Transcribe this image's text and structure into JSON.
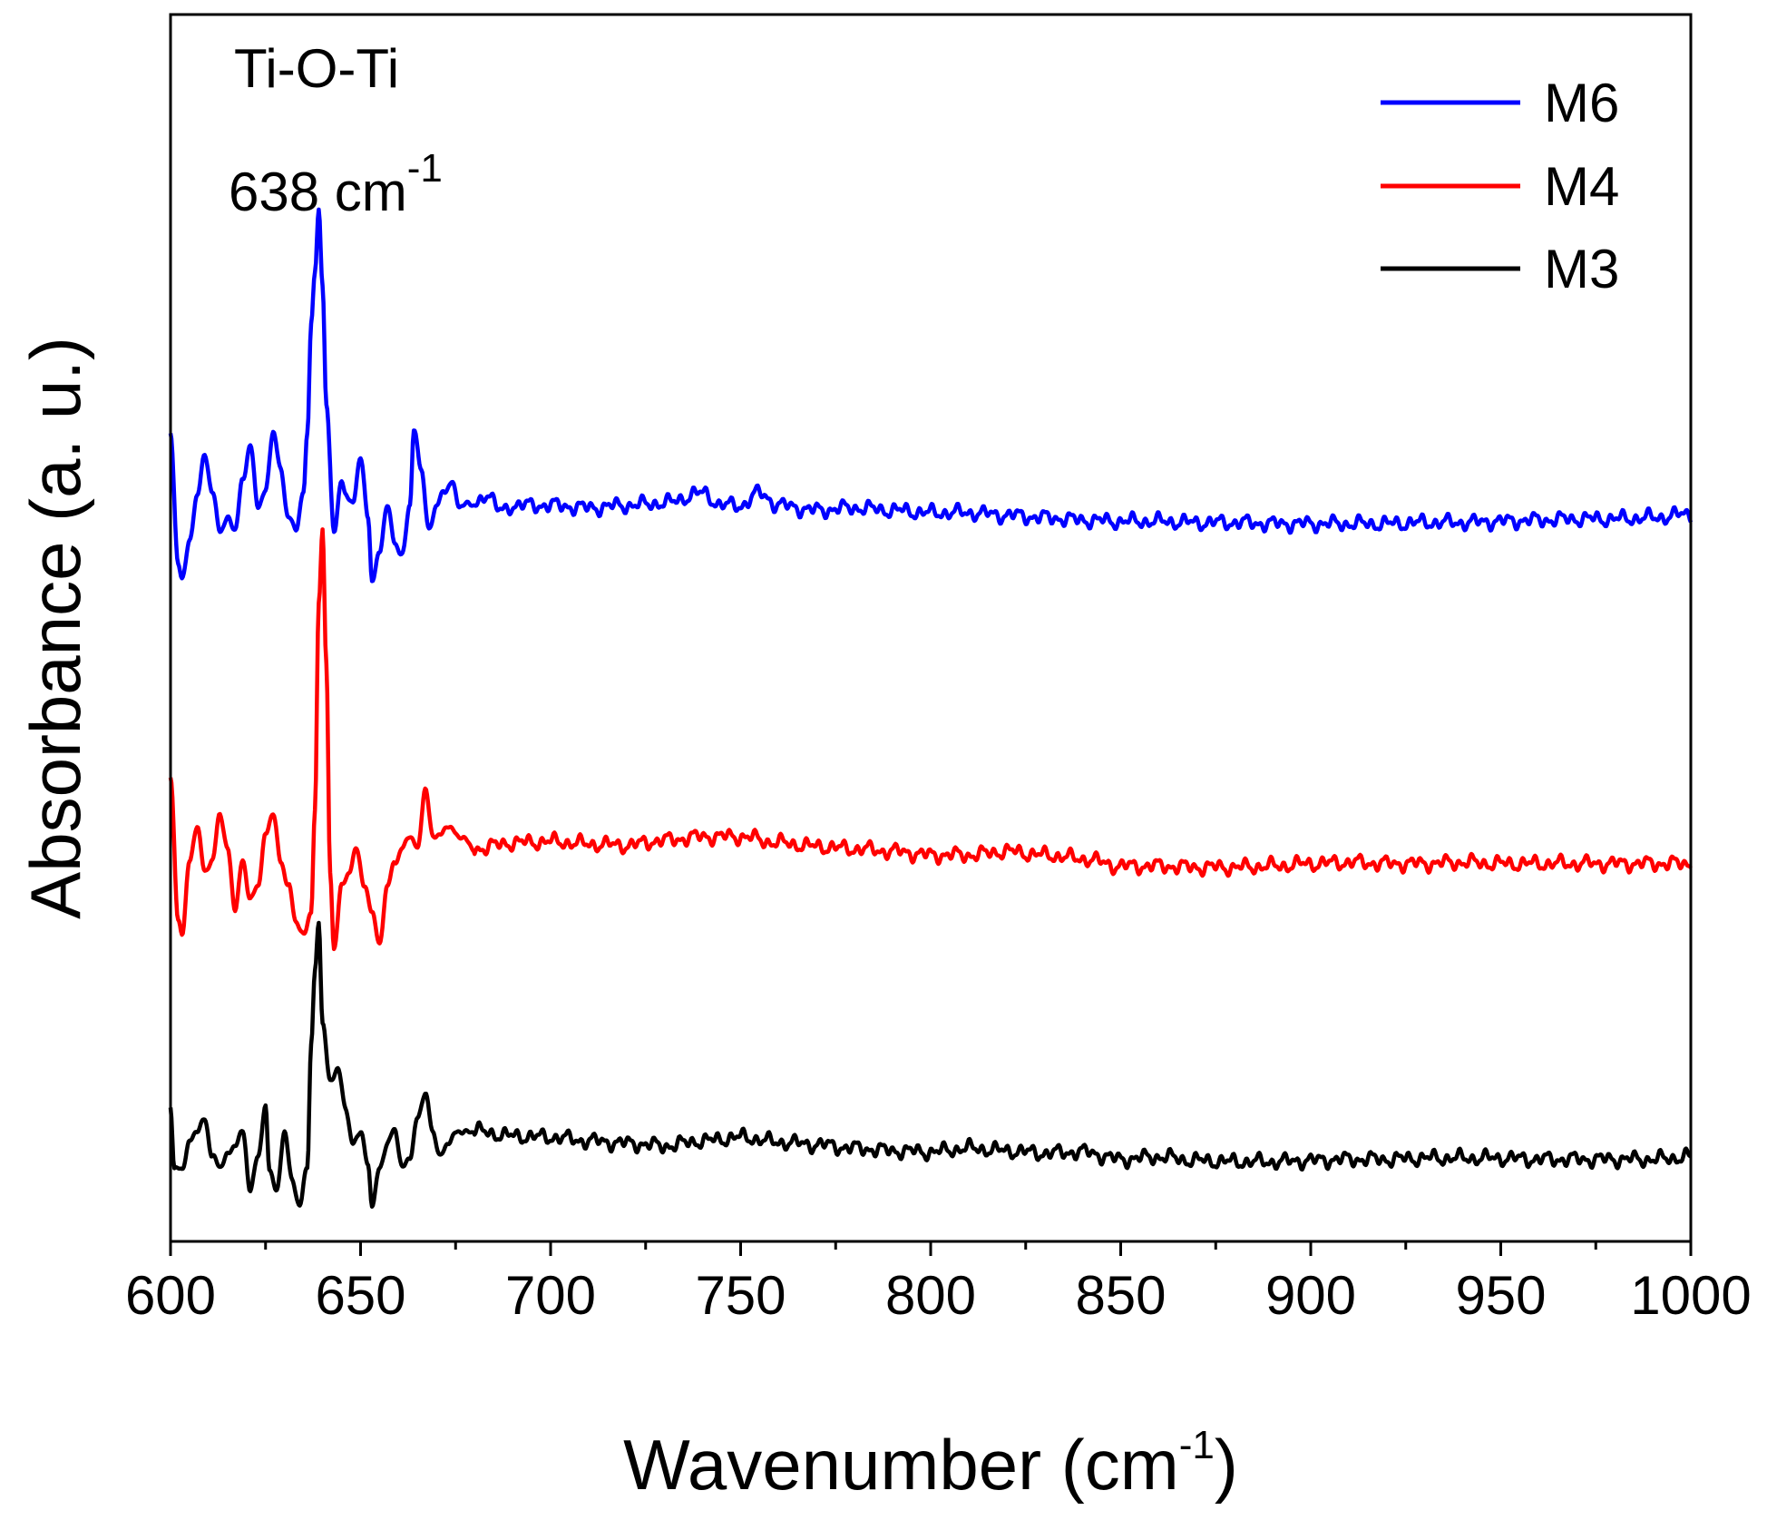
{
  "chart_data": {
    "type": "line",
    "title": "",
    "xlabel": "Wavenumber (cm",
    "xlabel_sup": "-1",
    "xlabel_close": ")",
    "ylabel": "Absorbance (a. u.)",
    "xlim": [
      600,
      1000
    ],
    "ylim": [
      0,
      100
    ],
    "y_ticks_shown": false,
    "x_ticks": [
      600,
      650,
      700,
      750,
      800,
      850,
      900,
      950,
      1000
    ],
    "x_tick_labels": [
      "600",
      "650",
      "700",
      "750",
      "800",
      "850",
      "900",
      "950",
      "1000"
    ],
    "legend_position": "top-right",
    "annotation": {
      "line1": "Ti-O-Ti",
      "line2": "638 cm",
      "line2_sup": "-1"
    },
    "series": [
      {
        "name": "M6",
        "color": "#0000ff",
        "baseline": 59,
        "noise_amp": 0.55,
        "seed": 7,
        "points": [
          [
            600,
            66
          ],
          [
            602,
            55
          ],
          [
            603,
            54
          ],
          [
            605,
            57
          ],
          [
            607,
            61
          ],
          [
            609,
            64
          ],
          [
            611,
            61
          ],
          [
            613,
            58
          ],
          [
            615,
            59
          ],
          [
            617,
            58
          ],
          [
            619,
            62
          ],
          [
            621,
            65
          ],
          [
            623,
            60
          ],
          [
            625,
            61
          ],
          [
            627,
            66
          ],
          [
            629,
            63
          ],
          [
            631,
            59
          ],
          [
            633,
            58
          ],
          [
            635,
            61
          ],
          [
            636,
            66
          ],
          [
            637,
            75
          ],
          [
            638,
            79
          ],
          [
            639,
            84
          ],
          [
            640,
            78
          ],
          [
            641,
            68
          ],
          [
            643,
            58
          ],
          [
            645,
            62
          ],
          [
            646,
            61
          ],
          [
            648,
            60
          ],
          [
            650,
            64
          ],
          [
            652,
            59
          ],
          [
            653,
            54
          ],
          [
            655,
            56
          ],
          [
            657,
            60
          ],
          [
            659,
            57
          ],
          [
            661,
            56
          ],
          [
            663,
            60
          ],
          [
            664,
            66
          ],
          [
            666,
            63
          ],
          [
            668,
            58
          ],
          [
            670,
            60
          ],
          [
            672,
            61
          ],
          [
            674,
            62
          ],
          [
            676,
            60
          ],
          [
            680,
            60
          ],
          [
            683,
            61
          ],
          [
            687,
            59.5
          ],
          [
            690,
            60
          ],
          [
            700,
            60
          ],
          [
            710,
            59.8
          ],
          [
            720,
            60
          ],
          [
            730,
            60.2
          ],
          [
            740,
            61
          ],
          [
            745,
            60
          ],
          [
            750,
            60
          ],
          [
            755,
            61
          ],
          [
            760,
            60
          ],
          [
            770,
            59.6
          ],
          [
            780,
            59.8
          ],
          [
            790,
            59.6
          ],
          [
            800,
            59.4
          ],
          [
            810,
            59.4
          ],
          [
            820,
            59.2
          ],
          [
            830,
            59
          ],
          [
            840,
            58.8
          ],
          [
            850,
            58.7
          ],
          [
            860,
            58.7
          ],
          [
            870,
            58.6
          ],
          [
            880,
            58.6
          ],
          [
            890,
            58.5
          ],
          [
            900,
            58.5
          ],
          [
            910,
            58.5
          ],
          [
            920,
            58.5
          ],
          [
            930,
            58.6
          ],
          [
            940,
            58.6
          ],
          [
            950,
            58.7
          ],
          [
            960,
            58.8
          ],
          [
            970,
            58.9
          ],
          [
            980,
            58.9
          ],
          [
            990,
            59
          ],
          [
            1000,
            59.3
          ]
        ]
      },
      {
        "name": "M4",
        "color": "#ff0000",
        "baseline": 31.5,
        "noise_amp": 0.55,
        "seed": 13,
        "points": [
          [
            600,
            38
          ],
          [
            602,
            26
          ],
          [
            603,
            25
          ],
          [
            605,
            31
          ],
          [
            607,
            34
          ],
          [
            609,
            30
          ],
          [
            611,
            31
          ],
          [
            613,
            35
          ],
          [
            615,
            32
          ],
          [
            617,
            27
          ],
          [
            619,
            31
          ],
          [
            621,
            28
          ],
          [
            623,
            29
          ],
          [
            625,
            33
          ],
          [
            627,
            35
          ],
          [
            629,
            31
          ],
          [
            631,
            29
          ],
          [
            633,
            26
          ],
          [
            635,
            25
          ],
          [
            637,
            27
          ],
          [
            638,
            35
          ],
          [
            639,
            52
          ],
          [
            640,
            58
          ],
          [
            641,
            47
          ],
          [
            642,
            30
          ],
          [
            643,
            24
          ],
          [
            645,
            29
          ],
          [
            647,
            30
          ],
          [
            649,
            32
          ],
          [
            651,
            29
          ],
          [
            653,
            27
          ],
          [
            655,
            24
          ],
          [
            657,
            29
          ],
          [
            659,
            31
          ],
          [
            661,
            32
          ],
          [
            663,
            33
          ],
          [
            665,
            32
          ],
          [
            667,
            37
          ],
          [
            669,
            33
          ],
          [
            671,
            33
          ],
          [
            673,
            34
          ],
          [
            676,
            33
          ],
          [
            680,
            32
          ],
          [
            690,
            32.5
          ],
          [
            700,
            32.6
          ],
          [
            710,
            32.4
          ],
          [
            720,
            32.3
          ],
          [
            730,
            32.7
          ],
          [
            740,
            33
          ],
          [
            750,
            33
          ],
          [
            760,
            32.5
          ],
          [
            770,
            32.2
          ],
          [
            780,
            32
          ],
          [
            790,
            31.8
          ],
          [
            800,
            31.5
          ],
          [
            810,
            31.5
          ],
          [
            820,
            31.8
          ],
          [
            830,
            31.5
          ],
          [
            840,
            31.2
          ],
          [
            850,
            30.6
          ],
          [
            860,
            30.6
          ],
          [
            870,
            30.5
          ],
          [
            880,
            30.5
          ],
          [
            890,
            30.6
          ],
          [
            900,
            30.8
          ],
          [
            910,
            30.9
          ],
          [
            920,
            30.8
          ],
          [
            930,
            30.8
          ],
          [
            940,
            30.9
          ],
          [
            950,
            30.8
          ],
          [
            960,
            30.8
          ],
          [
            970,
            30.8
          ],
          [
            980,
            30.8
          ],
          [
            990,
            30.8
          ],
          [
            1000,
            30.8
          ]
        ]
      },
      {
        "name": "M3",
        "color": "#000000",
        "baseline": 7.5,
        "noise_amp": 0.55,
        "seed": 21,
        "points": [
          [
            600,
            11
          ],
          [
            601,
            6
          ],
          [
            603,
            6
          ],
          [
            605,
            8
          ],
          [
            607,
            9
          ],
          [
            609,
            10
          ],
          [
            611,
            7
          ],
          [
            613,
            6
          ],
          [
            615,
            7
          ],
          [
            617,
            8
          ],
          [
            619,
            9
          ],
          [
            621,
            4
          ],
          [
            623,
            7
          ],
          [
            625,
            11
          ],
          [
            626,
            6
          ],
          [
            628,
            4
          ],
          [
            630,
            9
          ],
          [
            632,
            5
          ],
          [
            634,
            3
          ],
          [
            636,
            6
          ],
          [
            637,
            16
          ],
          [
            638,
            22
          ],
          [
            639,
            26
          ],
          [
            640,
            18
          ],
          [
            642,
            13
          ],
          [
            644,
            14
          ],
          [
            646,
            11
          ],
          [
            648,
            8
          ],
          [
            650,
            9
          ],
          [
            652,
            6
          ],
          [
            653,
            3
          ],
          [
            655,
            6
          ],
          [
            657,
            8
          ],
          [
            659,
            9
          ],
          [
            661,
            6
          ],
          [
            663,
            7
          ],
          [
            665,
            10
          ],
          [
            667,
            12
          ],
          [
            669,
            9
          ],
          [
            671,
            7
          ],
          [
            673,
            8
          ],
          [
            676,
            9
          ],
          [
            680,
            9
          ],
          [
            690,
            8.6
          ],
          [
            700,
            8.5
          ],
          [
            710,
            8.2
          ],
          [
            720,
            8
          ],
          [
            730,
            7.8
          ],
          [
            740,
            8.2
          ],
          [
            750,
            8.5
          ],
          [
            760,
            8.1
          ],
          [
            770,
            7.9
          ],
          [
            780,
            7.6
          ],
          [
            790,
            7.4
          ],
          [
            800,
            7.3
          ],
          [
            810,
            7.6
          ],
          [
            820,
            7.4
          ],
          [
            830,
            7.2
          ],
          [
            840,
            7.3
          ],
          [
            850,
            6.7
          ],
          [
            860,
            6.9
          ],
          [
            870,
            6.6
          ],
          [
            880,
            6.5
          ],
          [
            890,
            6.5
          ],
          [
            900,
            6.6
          ],
          [
            910,
            6.7
          ],
          [
            920,
            6.7
          ],
          [
            930,
            6.8
          ],
          [
            940,
            6.8
          ],
          [
            950,
            6.8
          ],
          [
            960,
            6.7
          ],
          [
            970,
            6.7
          ],
          [
            980,
            6.7
          ],
          [
            990,
            6.7
          ],
          [
            1000,
            6.9
          ]
        ]
      }
    ]
  }
}
